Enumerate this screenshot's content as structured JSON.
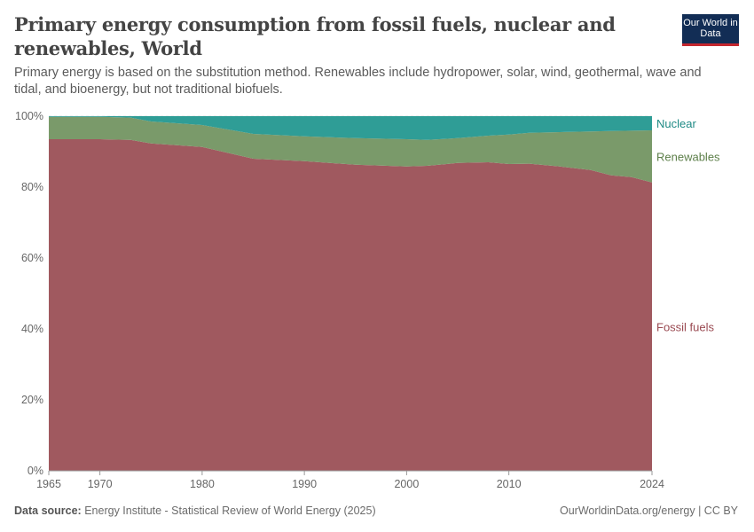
{
  "header": {
    "title": "Primary energy consumption from fossil fuels, nuclear and renewables, World",
    "subtitle": "Primary energy is based on the substitution method. Renewables include hydropower, solar, wind, geothermal, wave and tidal, and bioenergy, but not traditional biofuels.",
    "logo": "Our World in Data"
  },
  "footer": {
    "source_label": "Data source:",
    "source": "Energy Institute - Statistical Review of World Energy (2025)",
    "credit": "OurWorldinData.org/energy | CC BY"
  },
  "chart_data": {
    "type": "area",
    "stacked": true,
    "xlim": [
      1965,
      2024
    ],
    "ylim": [
      0,
      100
    ],
    "x_ticks": [
      "1965",
      "1970",
      "1980",
      "1990",
      "2000",
      "2010",
      "2024"
    ],
    "y_ticks": [
      "0%",
      "20%",
      "40%",
      "60%",
      "80%",
      "100%"
    ],
    "grid": "horizontal dashed",
    "legend": "right (inline labels)",
    "x": [
      1965,
      1970,
      1973,
      1975,
      1980,
      1985,
      1990,
      1995,
      2000,
      2002,
      2005,
      2008,
      2010,
      2012,
      2015,
      2018,
      2020,
      2022,
      2024
    ],
    "series": [
      {
        "name": "Fossil fuels",
        "color": "#a0595f",
        "label_color": "#9a4a52",
        "values": [
          93.5,
          93.5,
          93.3,
          92.3,
          91.3,
          88,
          87.3,
          86.3,
          85.8,
          86,
          86.8,
          87,
          86.5,
          86.6,
          85.8,
          84.8,
          83.3,
          82.8,
          81.3
        ]
      },
      {
        "name": "Renewables",
        "color": "#7a9a6a",
        "label_color": "#5d7f4a",
        "values": [
          6.3,
          6.3,
          6.3,
          6.2,
          6.2,
          7,
          7,
          7.5,
          7.7,
          7.3,
          7,
          7.5,
          8.3,
          8.7,
          9.7,
          10.9,
          12.5,
          13.1,
          14.7
        ]
      },
      {
        "name": "Nuclear",
        "color": "#2f9d96",
        "label_color": "#1f8a85",
        "values": [
          0.2,
          0.2,
          0.4,
          1.5,
          2.5,
          5,
          5.7,
          6.2,
          6.5,
          6.7,
          6.2,
          5.5,
          5.2,
          4.7,
          4.5,
          4.3,
          4.2,
          4.1,
          4
        ]
      }
    ]
  }
}
